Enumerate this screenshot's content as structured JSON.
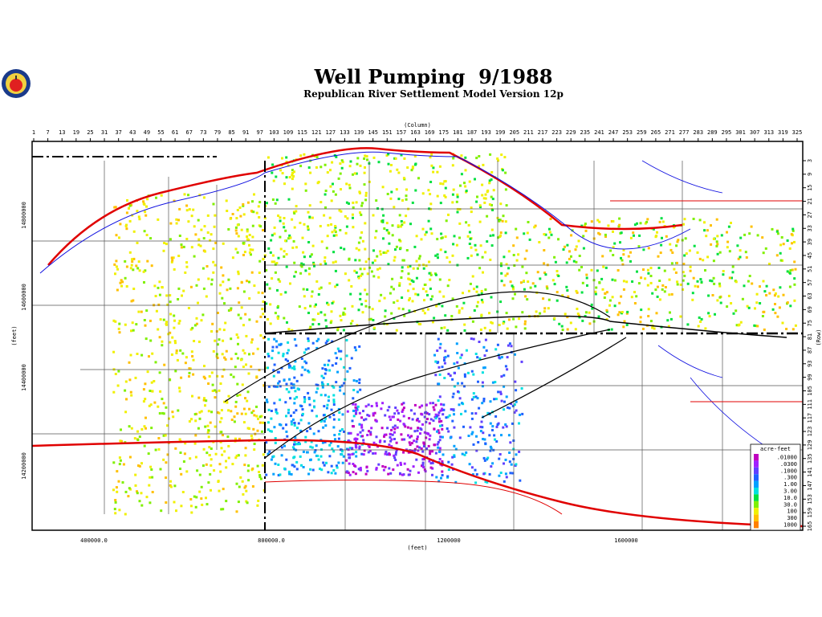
{
  "header": {
    "title": "Well Pumping  9/1988",
    "subtitle": "Republican River Settlement Model Version 12p"
  },
  "column_axis": {
    "label": "(Column)",
    "ticks": [
      1,
      7,
      13,
      19,
      25,
      31,
      37,
      43,
      49,
      55,
      61,
      67,
      73,
      79,
      85,
      91,
      97,
      103,
      109,
      115,
      121,
      127,
      133,
      139,
      145,
      151,
      157,
      163,
      169,
      175,
      181,
      187,
      193,
      199,
      205,
      211,
      217,
      223,
      229,
      235,
      241,
      247,
      253,
      259,
      265,
      271,
      277,
      283,
      289,
      295,
      301,
      307,
      313,
      319,
      325
    ]
  },
  "row_axis": {
    "label": "(Row)",
    "ticks": [
      3,
      9,
      15,
      21,
      27,
      33,
      39,
      45,
      51,
      57,
      63,
      69,
      75,
      81,
      87,
      93,
      99,
      105,
      111,
      117,
      123,
      129,
      135,
      141,
      147,
      153,
      159,
      165
    ]
  },
  "x_axis": {
    "label": "(feet)",
    "ticks": [
      "400000.0",
      "800000.0",
      "1200000",
      "1600000"
    ]
  },
  "y_axis": {
    "label": "(feet)",
    "ticks": [
      "14800000",
      "14600000",
      "14400000",
      "14200000"
    ]
  },
  "legend": {
    "title": "acre-feet",
    "items": [
      {
        "label": ".01000",
        "color": "#c000c0"
      },
      {
        "label": ".0300",
        "color": "#a020ff"
      },
      {
        "label": ".1000",
        "color": "#6040ff"
      },
      {
        "label": ".300",
        "color": "#2060ff"
      },
      {
        "label": "1.00",
        "color": "#00a0ff"
      },
      {
        "label": "3.00",
        "color": "#00e0e0"
      },
      {
        "label": "10.0",
        "color": "#00e040"
      },
      {
        "label": "30.0",
        "color": "#80f000"
      },
      {
        "label": "100",
        "color": "#f0f000"
      },
      {
        "label": "300",
        "color": "#ffc000"
      },
      {
        "label": "1000",
        "color": "#ff8000"
      }
    ]
  }
}
